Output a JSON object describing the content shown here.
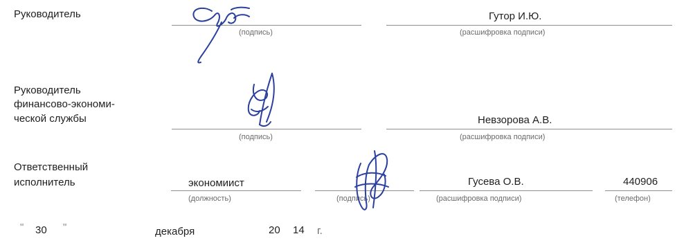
{
  "head": {
    "label": "Руководитель",
    "signature_caption": "(подпись)",
    "name": "Гутор И.Ю.",
    "name_caption": "(расшифровка подписи)"
  },
  "finance": {
    "label_lines": [
      "Руководитель",
      "финансово-экономи-",
      "ческой службы"
    ],
    "signature_caption": "(подпись)",
    "name": "Невзорова А.В.",
    "name_caption": "(расшифровка подписи)"
  },
  "executor": {
    "label_lines": [
      "Ответственный",
      "исполнитель"
    ],
    "position": "экономиист",
    "position_caption": "(должность)",
    "signature_caption": "(подпись)",
    "name": "Гусева О.В.",
    "name_caption": "(расшифровка подписи)",
    "phone": "440906",
    "phone_caption": "(телефон)"
  },
  "date": {
    "open_quote": "\"",
    "day": "30",
    "close_quote": "\"",
    "month": "декабря",
    "century": "20",
    "year": "14",
    "suffix": "г."
  },
  "colors": {
    "ink": "#2a3f9e",
    "text": "#1e1e1e",
    "caption": "#6a6a6a",
    "line": "#8e8e8e"
  }
}
